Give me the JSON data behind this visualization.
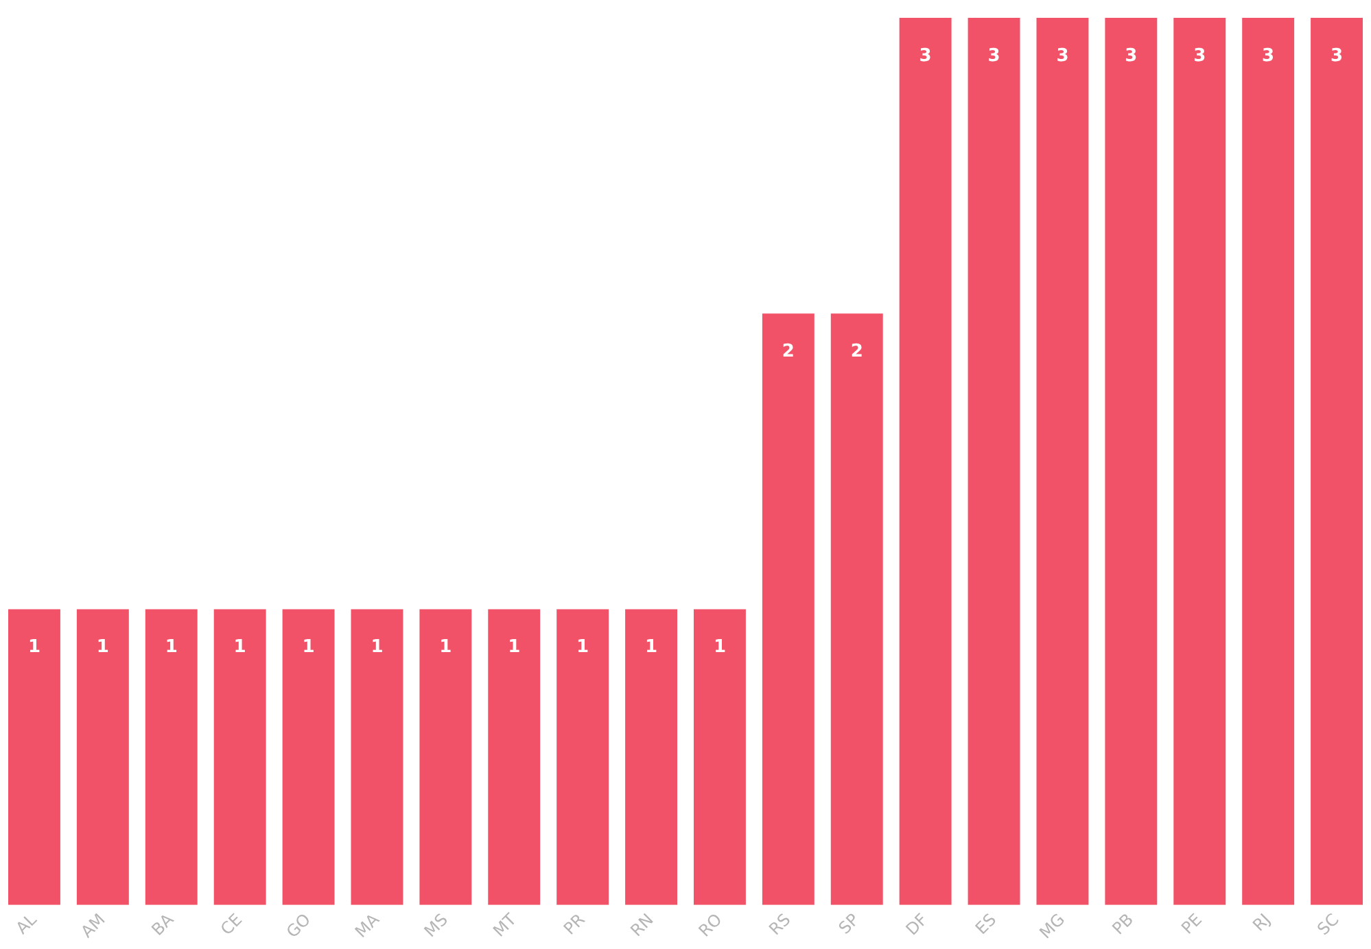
{
  "chart_data": {
    "type": "bar",
    "categories": [
      "AL",
      "AM",
      "BA",
      "CE",
      "GO",
      "MA",
      "MS",
      "MT",
      "PR",
      "RN",
      "RO",
      "RS",
      "SP",
      "DF",
      "ES",
      "MG",
      "PB",
      "PE",
      "RJ",
      "SC"
    ],
    "values": [
      1,
      1,
      1,
      1,
      1,
      1,
      1,
      1,
      1,
      1,
      1,
      2,
      2,
      3,
      3,
      3,
      3,
      3,
      3,
      3
    ],
    "color": "#f25267",
    "data_labels": true,
    "grid": false,
    "legend": false
  }
}
